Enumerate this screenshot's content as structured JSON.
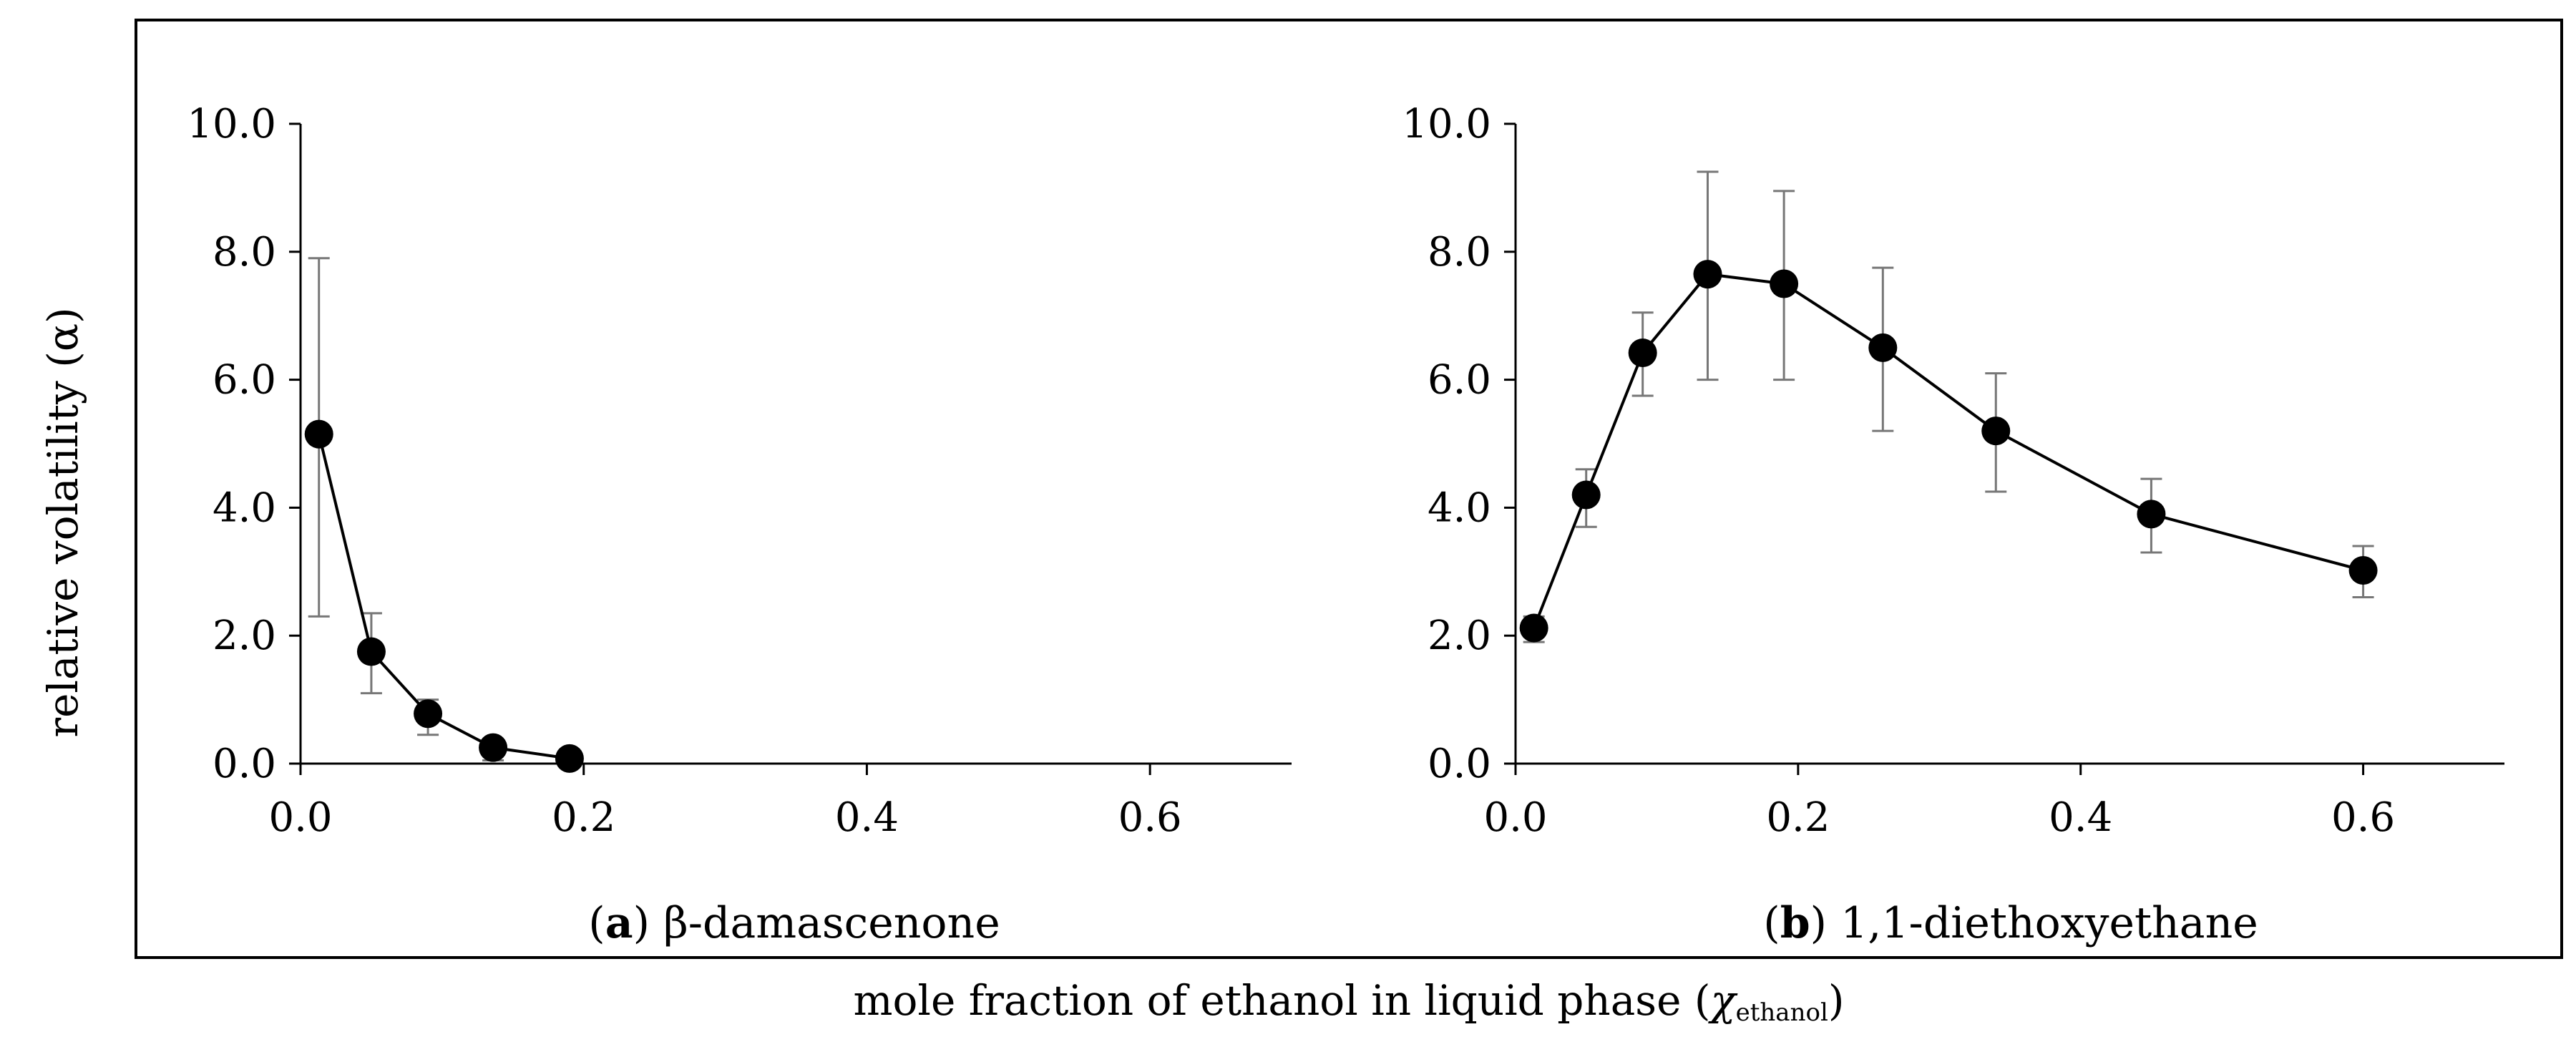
{
  "figure": {
    "y_axis_title": "relative volatility (α)",
    "x_axis_title_main": "mole fraction of ethanol in liquid phase (",
    "x_axis_title_symbol": "χ",
    "x_axis_title_subscript": "ethanol",
    "x_axis_title_close": ")"
  },
  "chart_data": [
    {
      "type": "line",
      "panel_label": "a",
      "panel_title": "β-damascenone",
      "xlim": [
        0.0,
        0.7
      ],
      "ylim": [
        0.0,
        10.0
      ],
      "x_ticks": [
        0.0,
        0.2,
        0.4,
        0.6
      ],
      "x_tick_labels": [
        "0.0",
        "0.2",
        "0.4",
        "0.6"
      ],
      "y_ticks": [
        0.0,
        2.0,
        4.0,
        6.0,
        8.0,
        10.0
      ],
      "y_tick_labels": [
        "0.0",
        "2.0",
        "4.0",
        "6.0",
        "8.0",
        "10.0"
      ],
      "grid": false,
      "series": [
        {
          "name": "β-damascenone",
          "x": [
            0.013,
            0.05,
            0.09,
            0.136,
            0.19
          ],
          "y": [
            5.15,
            1.75,
            0.78,
            0.25,
            0.08
          ],
          "err_low": [
            2.3,
            1.1,
            0.45,
            0.05,
            0.0
          ],
          "err_high": [
            7.9,
            2.35,
            1.0,
            0.35,
            0.15
          ]
        }
      ]
    },
    {
      "type": "line",
      "panel_label": "b",
      "panel_title": "1,1-diethoxyethane",
      "xlim": [
        0.0,
        0.7
      ],
      "ylim": [
        0.0,
        10.0
      ],
      "x_ticks": [
        0.0,
        0.2,
        0.4,
        0.6
      ],
      "x_tick_labels": [
        "0.0",
        "0.2",
        "0.4",
        "0.6"
      ],
      "y_ticks": [
        0.0,
        2.0,
        4.0,
        6.0,
        8.0,
        10.0
      ],
      "y_tick_labels": [
        "0.0",
        "2.0",
        "4.0",
        "6.0",
        "8.0",
        "10.0"
      ],
      "grid": false,
      "series": [
        {
          "name": "1,1-diethoxyethane",
          "x": [
            0.013,
            0.05,
            0.09,
            0.136,
            0.19,
            0.26,
            0.34,
            0.45,
            0.6
          ],
          "y": [
            2.12,
            4.2,
            6.42,
            7.65,
            7.5,
            6.5,
            5.2,
            3.9,
            3.02
          ],
          "err_low": [
            1.9,
            3.7,
            5.75,
            6.0,
            6.0,
            5.2,
            4.25,
            3.3,
            2.6
          ],
          "err_high": [
            2.3,
            4.6,
            7.05,
            9.25,
            8.95,
            7.75,
            6.1,
            4.45,
            3.4
          ]
        }
      ]
    }
  ]
}
